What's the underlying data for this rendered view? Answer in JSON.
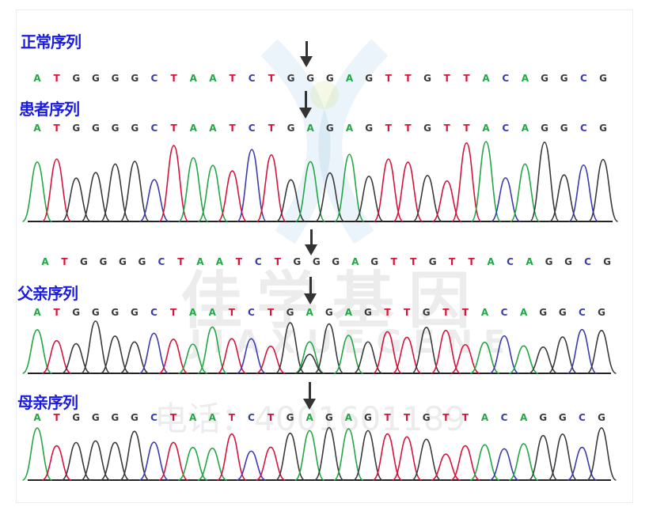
{
  "colors": {
    "A": "#22a744",
    "T": "#d6133c",
    "G": "#3a3a3a",
    "C": "#3b3bb0",
    "label": "#1b1be6",
    "arrow": "#333333"
  },
  "watermark": {
    "company": "佳学基因",
    "company_latin": "JIAXUEGENE",
    "phone": "电话：4001601189"
  },
  "panels": [
    {
      "label": "正常序列",
      "sequence": "ATGGGGCTAATCTGGGAGTTGTTACAGGCG",
      "highlight_index": 14,
      "has_trace": false
    },
    {
      "label": "患者序列",
      "sequence": "ATGGGGCTAATCTGAGAGTTGTTACAGGCG",
      "highlight_index": 14,
      "has_trace": true
    },
    {
      "label": "",
      "sequence": "ATGGGGCTAATCTGGGAGTTGTTACAGGCG",
      "highlight_index": 14,
      "has_trace": false
    },
    {
      "label": "父亲序列",
      "sequence": "ATGGGGCTAATCTGAGAGTTGTTACAGGCG",
      "highlight_index": 14,
      "has_trace": true
    },
    {
      "label": "母亲序列",
      "sequence": "ATGGGGCTAATCTGAGAGTTGTTACAGGCG",
      "highlight_index": 14,
      "has_trace": true
    }
  ]
}
